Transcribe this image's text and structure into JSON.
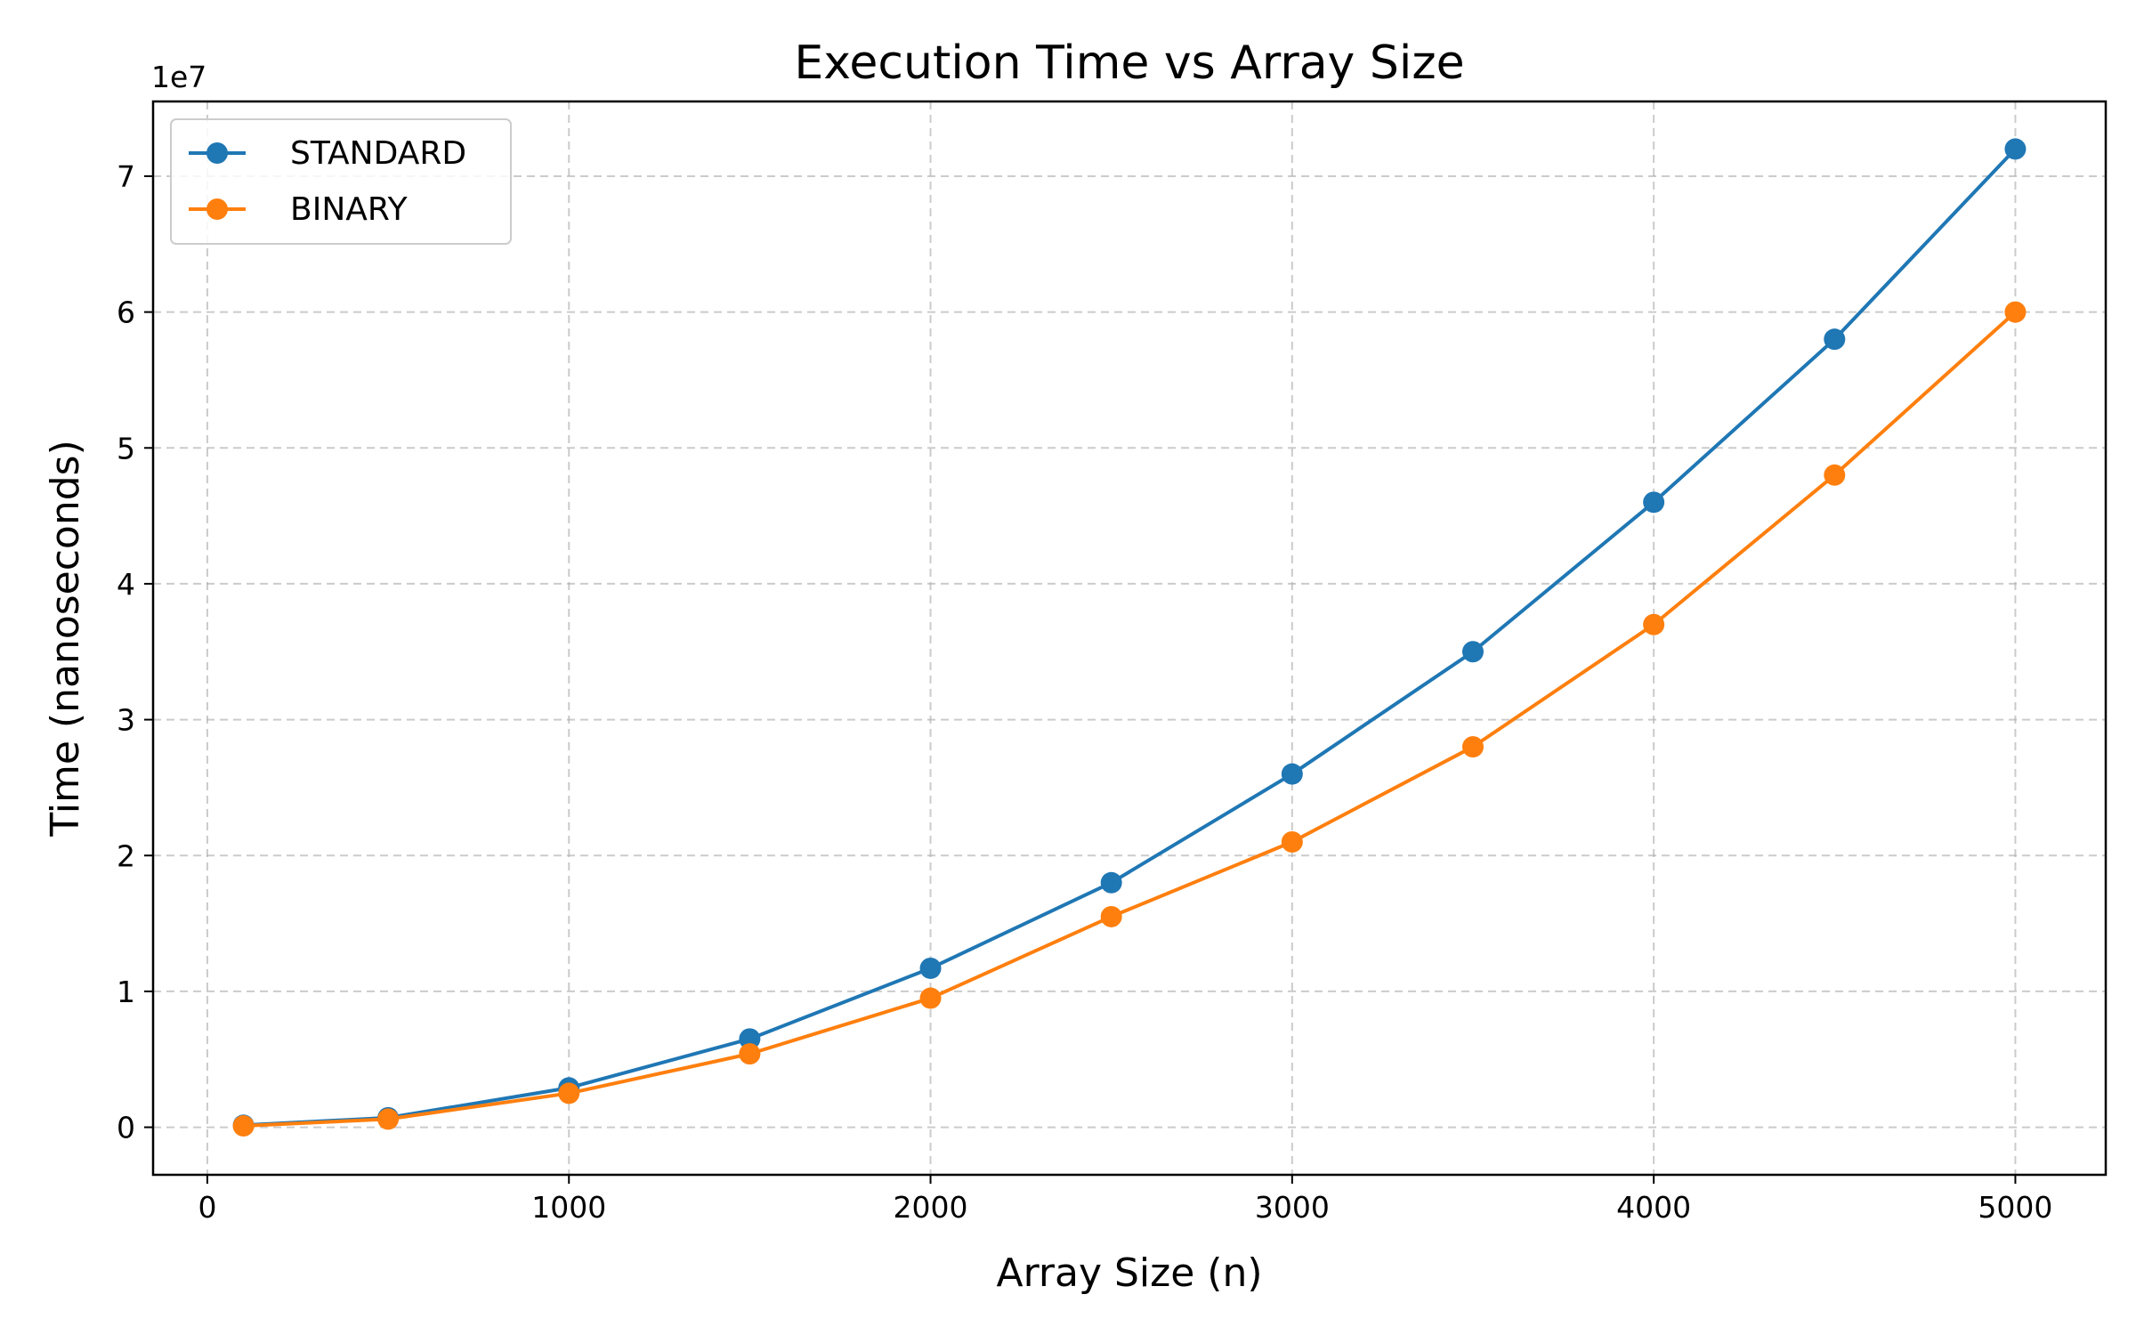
{
  "chart_data": {
    "type": "line",
    "title": "Execution Time vs Array Size",
    "xlabel": "Array Size (n)",
    "ylabel": "Time (nanoseconds)",
    "y_offset_label": "1e7",
    "xlim": [
      -150,
      5250
    ],
    "ylim": [
      -3500000,
      75500000
    ],
    "x_ticks": [
      0,
      1000,
      2000,
      3000,
      4000,
      5000
    ],
    "x_tick_labels": [
      "0",
      "1000",
      "2000",
      "3000",
      "4000",
      "5000"
    ],
    "y_ticks": [
      0,
      10000000,
      20000000,
      30000000,
      40000000,
      50000000,
      60000000,
      70000000
    ],
    "y_tick_labels": [
      "0",
      "1",
      "2",
      "3",
      "4",
      "5",
      "6",
      "7"
    ],
    "grid": true,
    "legend_position": "top-left",
    "x": [
      100,
      500,
      1000,
      1500,
      2000,
      2500,
      3000,
      3500,
      4000,
      4500,
      5000
    ],
    "series": [
      {
        "name": "STANDARD",
        "color": "#1f77b4",
        "values": [
          150000,
          700000,
          2900000,
          6500000,
          11700000,
          18000000,
          26000000,
          35000000,
          46000000,
          58000000,
          72000000
        ]
      },
      {
        "name": "BINARY",
        "color": "#ff7f0e",
        "values": [
          100000,
          600000,
          2500000,
          5400000,
          9500000,
          15500000,
          21000000,
          28000000,
          37000000,
          48000000,
          60000000
        ]
      }
    ]
  }
}
